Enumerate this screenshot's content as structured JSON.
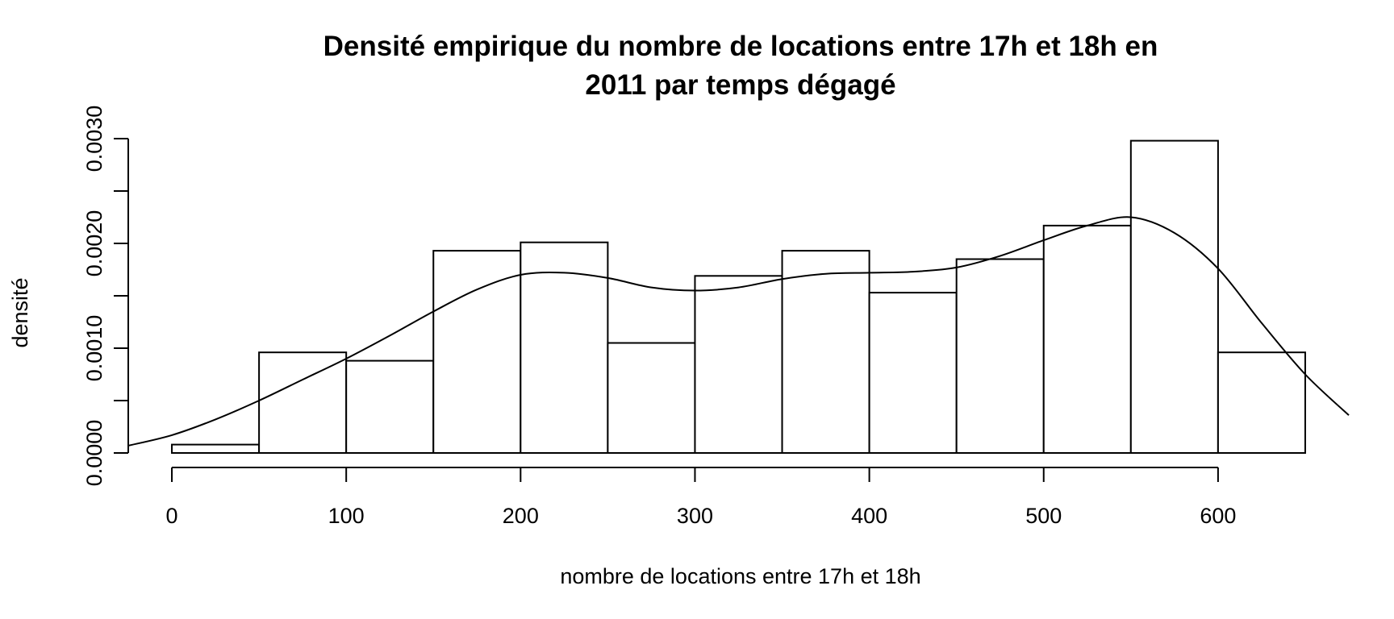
{
  "chart_data": {
    "type": "bar",
    "subtype": "histogram-with-density",
    "title_lines": [
      "Densité empirique du nombre de locations entre 17h et 18h en",
      "2011 par temps dégagé"
    ],
    "xlabel": "nombre de locations entre 17h et 18h",
    "ylabel": "densité",
    "xlim": [
      -25,
      675
    ],
    "ylim": [
      0,
      0.003
    ],
    "x_axis_range": [
      0,
      600
    ],
    "x_ticks": [
      0,
      100,
      200,
      300,
      400,
      500,
      600
    ],
    "x_tick_labels": [
      "0",
      "100",
      "200",
      "300",
      "400",
      "500",
      "600"
    ],
    "y_ticks": [
      0,
      0.0005,
      0.001,
      0.0015,
      0.002,
      0.0025,
      0.003
    ],
    "y_tick_labels": [
      "0.0000",
      "",
      "0.0010",
      "",
      "0.0020",
      "",
      "0.0030"
    ],
    "bins": [
      {
        "from": 0,
        "to": 50,
        "density": 8e-05
      },
      {
        "from": 50,
        "to": 100,
        "density": 0.00096
      },
      {
        "from": 100,
        "to": 150,
        "density": 0.00088
      },
      {
        "from": 150,
        "to": 200,
        "density": 0.00193
      },
      {
        "from": 200,
        "to": 250,
        "density": 0.00201
      },
      {
        "from": 250,
        "to": 300,
        "density": 0.00105
      },
      {
        "from": 300,
        "to": 350,
        "density": 0.00169
      },
      {
        "from": 350,
        "to": 400,
        "density": 0.00193
      },
      {
        "from": 400,
        "to": 450,
        "density": 0.00153
      },
      {
        "from": 450,
        "to": 500,
        "density": 0.00185
      },
      {
        "from": 500,
        "to": 550,
        "density": 0.00217
      },
      {
        "from": 550,
        "to": 600,
        "density": 0.00298
      },
      {
        "from": 600,
        "to": 650,
        "density": 0.00096
      }
    ],
    "density_curve": {
      "x": [
        -25,
        0,
        25,
        50,
        75,
        100,
        125,
        150,
        175,
        200,
        225,
        250,
        275,
        300,
        325,
        350,
        375,
        400,
        425,
        450,
        475,
        500,
        525,
        550,
        575,
        600,
        625,
        650,
        675
      ],
      "y": [
        7e-05,
        0.00017,
        0.00032,
        0.0005,
        0.0007,
        0.0009,
        0.00112,
        0.00135,
        0.00156,
        0.0017,
        0.00172,
        0.00167,
        0.00158,
        0.00155,
        0.00158,
        0.00166,
        0.00171,
        0.00172,
        0.00173,
        0.00177,
        0.00188,
        0.00203,
        0.00217,
        0.00225,
        0.0021,
        0.00176,
        0.00124,
        0.00075,
        0.00036
      ]
    },
    "grid": false,
    "legend": "none"
  }
}
